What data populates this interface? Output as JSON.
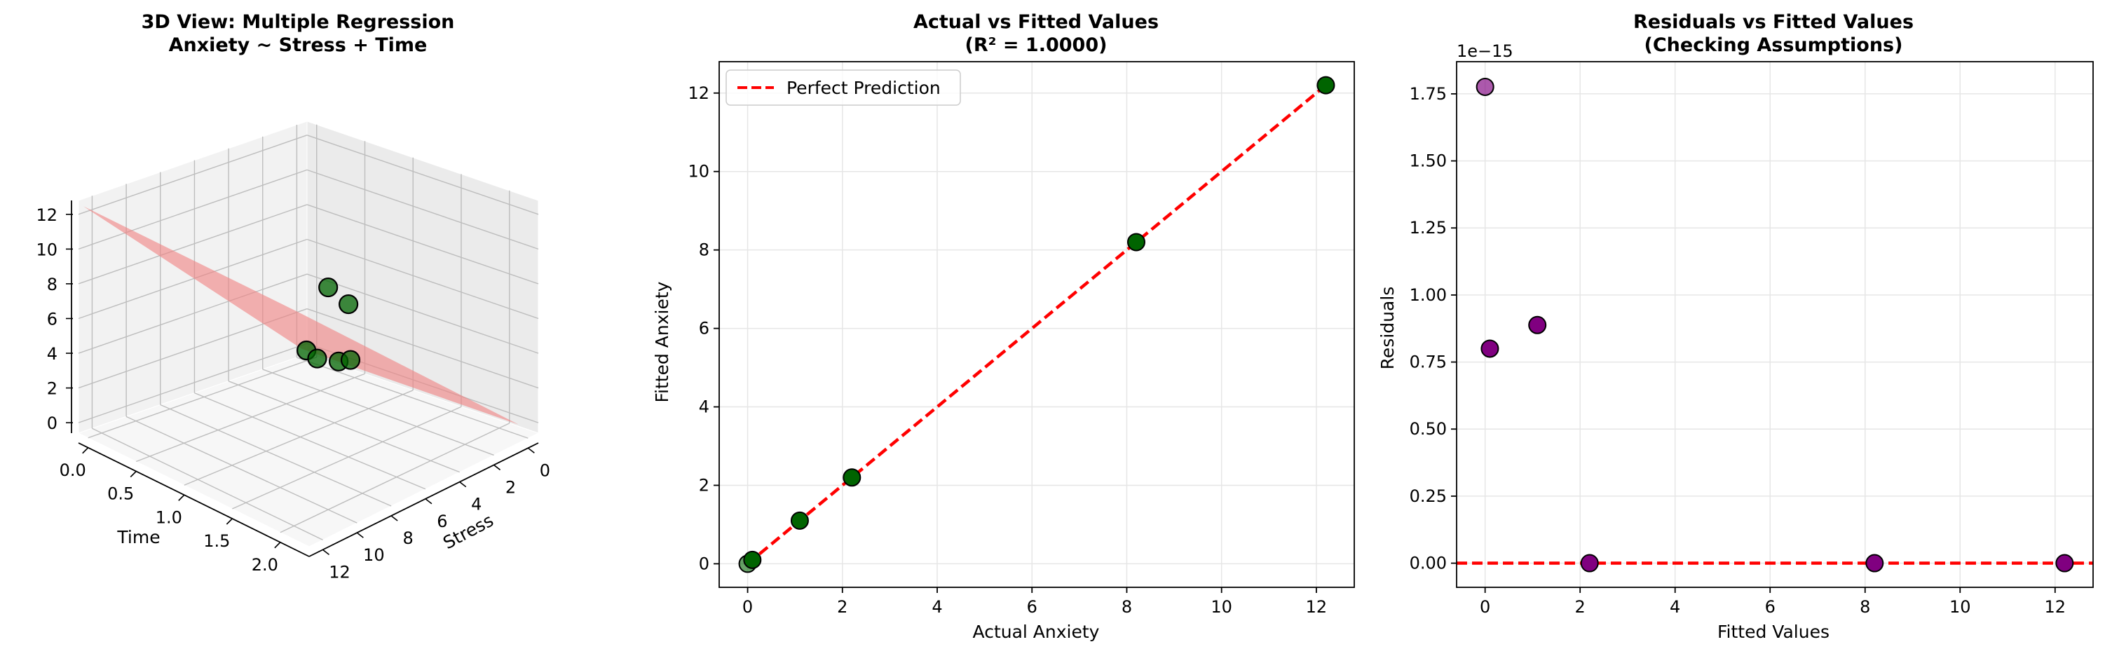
{
  "colors": {
    "plane": "#f08080",
    "point_fill": "#006400",
    "residual_fill": "#800080",
    "reference_line": "#ff0000",
    "edge": "#000000",
    "grid": "#e6e6e6"
  },
  "chart_data": [
    {
      "type": "scatter",
      "projection": "3d",
      "title_lines": [
        "3D View: Multiple Regression",
        "Anxiety ~ Stress + Time"
      ],
      "xlabel": "Stress",
      "ylabel": "Time",
      "zlabel": "",
      "x_ticks": [
        "0",
        "2",
        "4",
        "6",
        "8",
        "10",
        "12"
      ],
      "y_ticks": [
        "0.0",
        "0.5",
        "1.0",
        "1.5",
        "2.0"
      ],
      "z_ticks": [
        "0",
        "2",
        "4",
        "6",
        "8",
        "10",
        "12"
      ],
      "xlim": [
        -0.6,
        12.8
      ],
      "ylim": [
        -0.1,
        2.3
      ],
      "zlim": [
        -0.6,
        12.8
      ],
      "surface": "fitted regression plane (red, translucent)",
      "points": [
        {
          "stress": 0.0,
          "time": 0.0,
          "anxiety": 0.0
        },
        {
          "stress": 0.5,
          "time": 0.2,
          "anxiety": 0.1
        },
        {
          "stress": 1.5,
          "time": 0.6,
          "anxiety": 1.1
        },
        {
          "stress": 2.5,
          "time": 0.9,
          "anxiety": 2.2
        },
        {
          "stress": 6.0,
          "time": 1.5,
          "anxiety": 8.2
        },
        {
          "stress": 10.0,
          "time": 2.0,
          "anxiety": 12.2
        }
      ],
      "grid": true
    },
    {
      "type": "scatter",
      "title_lines": [
        "Actual vs Fitted Values",
        "(R² = 1.0000)"
      ],
      "xlabel": "Actual Anxiety",
      "ylabel": "Fitted Anxiety",
      "xlim": [
        -0.6,
        12.8
      ],
      "ylim": [
        -0.6,
        12.8
      ],
      "x_ticks": [
        0,
        2,
        4,
        6,
        8,
        10,
        12
      ],
      "y_ticks": [
        0,
        2,
        4,
        6,
        8,
        10,
        12
      ],
      "points": [
        [
          0.0,
          0.0
        ],
        [
          0.1,
          0.1
        ],
        [
          1.1,
          1.1
        ],
        [
          2.2,
          2.2
        ],
        [
          8.2,
          8.2
        ],
        [
          12.2,
          12.2
        ]
      ],
      "reference_line": {
        "name": "Perfect Prediction",
        "from": [
          0.0,
          0.0
        ],
        "to": [
          12.2,
          12.2
        ]
      },
      "legend": "upper-left",
      "grid": true
    },
    {
      "type": "scatter",
      "title_lines": [
        "Residuals vs Fitted Values",
        "(Checking Assumptions)"
      ],
      "xlabel": "Fitted Values",
      "ylabel": "Residuals",
      "offset_text": "1e−15",
      "xlim": [
        -0.6,
        12.8
      ],
      "ylim": [
        -0.09,
        1.87
      ],
      "x_ticks": [
        0,
        2,
        4,
        6,
        8,
        10,
        12
      ],
      "y_ticks": [
        "0.00",
        "0.25",
        "0.50",
        "0.75",
        "1.00",
        "1.25",
        "1.50",
        "1.75"
      ],
      "y_tick_values": [
        0,
        0.25,
        0.5,
        0.75,
        1.0,
        1.25,
        1.5,
        1.75
      ],
      "points": [
        [
          0.0,
          1.776
        ],
        [
          0.1,
          0.8
        ],
        [
          1.1,
          0.888
        ],
        [
          2.2,
          0.0
        ],
        [
          8.2,
          0.0
        ],
        [
          12.2,
          0.0
        ]
      ],
      "reference_line_y": 0,
      "grid": true
    }
  ]
}
